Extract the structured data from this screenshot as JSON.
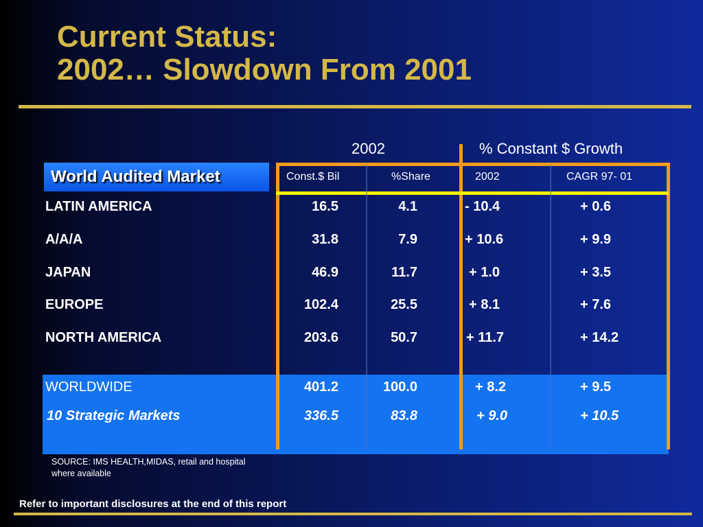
{
  "title": {
    "line1": "Current Status:",
    "line2": "2002… Slowdown From 2001"
  },
  "market_label": "World Audited Market",
  "headers": {
    "year_2002": "2002",
    "growth": "% Constant $ Growth",
    "const_bil": "Const.$ Bil",
    "share": "%Share",
    "growth_2002": "2002",
    "cagr": "CAGR 97- 01"
  },
  "rows": [
    {
      "region": "LATIN AMERICA",
      "const_bil": "16.5",
      "share": "4.1",
      "growth_2002": "-  10.4",
      "cagr": "+  0.6"
    },
    {
      "region": "A/A/A",
      "const_bil": "31.8",
      "share": "7.9",
      "growth_2002": "+ 10.6",
      "cagr": "+  9.9"
    },
    {
      "region": "JAPAN",
      "const_bil": "46.9",
      "share": "11.7",
      "growth_2002": " +  1.0",
      "cagr": "+  3.5"
    },
    {
      "region": "EUROPE",
      "const_bil": "102.4",
      "share": "25.5",
      "growth_2002": " +  8.1",
      "cagr": "+  7.6"
    },
    {
      "region": "NORTH AMERICA",
      "const_bil": "203.6",
      "share": "50.7",
      "growth_2002": "+ 11.7",
      "cagr": "+ 14.2"
    }
  ],
  "worldwide": {
    "region": "WORLDWIDE",
    "const_bil": "401.2",
    "share": "100.0",
    "growth_2002": "+ 8.2",
    "cagr": "+  9.5"
  },
  "strategic": {
    "region": "10 Strategic Markets",
    "const_bil": "336.5",
    "share": "83.8",
    "growth_2002": "+ 9.0",
    "cagr": "+  10.5"
  },
  "source_note": "SOURCE: IMS HEALTH,MIDAS, retail and hospital where available",
  "disclosure": "Refer to important disclosures at the end of this report",
  "colors": {
    "gold": "#d4b848",
    "orange": "#f39a1e",
    "yellow": "#f5f000",
    "band_blue": "#1473f0"
  }
}
